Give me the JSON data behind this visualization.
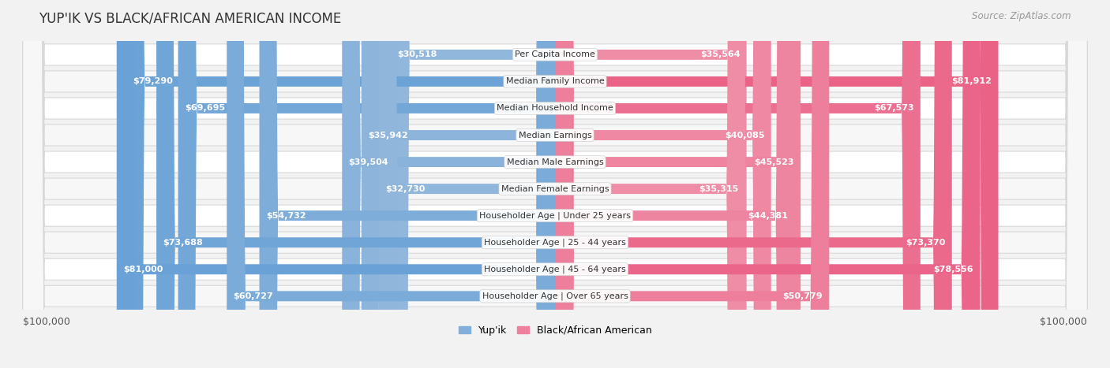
{
  "title": "YUP'IK VS BLACK/AFRICAN AMERICAN INCOME",
  "source": "Source: ZipAtlas.com",
  "categories": [
    "Per Capita Income",
    "Median Family Income",
    "Median Household Income",
    "Median Earnings",
    "Median Male Earnings",
    "Median Female Earnings",
    "Householder Age | Under 25 years",
    "Householder Age | 25 - 44 years",
    "Householder Age | 45 - 64 years",
    "Householder Age | Over 65 years"
  ],
  "yupik_values": [
    30518,
    79290,
    69695,
    35942,
    39504,
    32730,
    54732,
    73688,
    81000,
    60727
  ],
  "black_values": [
    35564,
    81912,
    67573,
    40085,
    45523,
    35315,
    44381,
    73370,
    78556,
    50779
  ],
  "yupik_labels": [
    "$30,518",
    "$79,290",
    "$69,695",
    "$35,942",
    "$39,504",
    "$32,730",
    "$54,732",
    "$73,688",
    "$81,000",
    "$60,727"
  ],
  "black_labels": [
    "$35,564",
    "$81,912",
    "$67,573",
    "$40,085",
    "$45,523",
    "$35,315",
    "$44,381",
    "$73,370",
    "$78,556",
    "$50,779"
  ],
  "yupik_color_low": "#aac4e0",
  "yupik_color_high": "#5b9bd5",
  "black_color_low": "#f4aec0",
  "black_color_high": "#e8527a",
  "max_value": 100000,
  "background_color": "#f2f2f2",
  "legend_yupik": "Yup'ik",
  "legend_black": "Black/African American",
  "xlabel_left": "$100,000",
  "xlabel_right": "$100,000",
  "title_fontsize": 12,
  "source_fontsize": 8.5,
  "label_fontsize": 8,
  "category_fontsize": 8,
  "legend_fontsize": 9,
  "axis_fontsize": 9
}
